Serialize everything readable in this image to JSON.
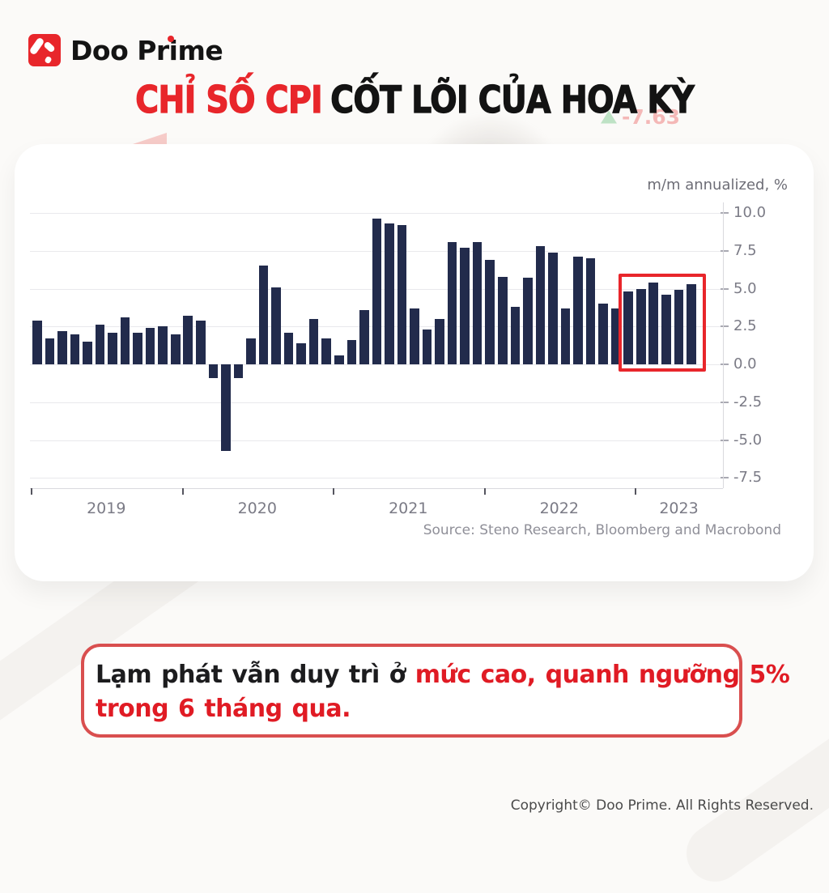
{
  "brand": {
    "name": "Doo Prime"
  },
  "title": {
    "red": "CHỈ SỐ CPI",
    "black": "CỐT LÕI CỦA HOA KỲ"
  },
  "background_remnant": {
    "ticker_value": "-7.63"
  },
  "chart_data": {
    "type": "bar",
    "title": "US Core CPI",
    "unit_label": "m/m annualized, %",
    "source": "Source: Steno Research, Bloomberg and Macrobond",
    "bar_color": "#222b4c",
    "grid": true,
    "y_axis_side": "right",
    "y_ticks": [
      10.0,
      7.5,
      5.0,
      2.5,
      0.0,
      -2.5,
      -5.0,
      -7.5
    ],
    "ylim": [
      -8.5,
      11.2
    ],
    "year_labels": [
      "2019",
      "2020",
      "2021",
      "2022",
      "2023"
    ],
    "x": [
      "Jan 2019",
      "Feb 2019",
      "Mar 2019",
      "Apr 2019",
      "May 2019",
      "Jun 2019",
      "Jul 2019",
      "Aug 2019",
      "Sep 2019",
      "Oct 2019",
      "Nov 2019",
      "Dec 2019",
      "Jan 2020",
      "Feb 2020",
      "Mar 2020",
      "Apr 2020",
      "May 2020",
      "Jun 2020",
      "Jul 2020",
      "Aug 2020",
      "Sep 2020",
      "Oct 2020",
      "Nov 2020",
      "Dec 2020",
      "Jan 2021",
      "Feb 2021",
      "Mar 2021",
      "Apr 2021",
      "May 2021",
      "Jun 2021",
      "Jul 2021",
      "Aug 2021",
      "Sep 2021",
      "Oct 2021",
      "Nov 2021",
      "Dec 2021",
      "Jan 2022",
      "Feb 2022",
      "Mar 2022",
      "Apr 2022",
      "May 2022",
      "Jun 2022",
      "Jul 2022",
      "Aug 2022",
      "Sep 2022",
      "Oct 2022",
      "Nov 2022",
      "Dec 2022",
      "Jan 2023",
      "Feb 2023",
      "Mar 2023",
      "Apr 2023",
      "May 2023"
    ],
    "values": [
      2.9,
      1.7,
      2.2,
      2.0,
      1.5,
      2.6,
      2.1,
      3.1,
      2.1,
      2.4,
      2.5,
      2.0,
      3.2,
      2.9,
      -0.9,
      -5.7,
      -0.9,
      1.7,
      6.5,
      5.1,
      2.1,
      1.4,
      3.0,
      1.7,
      0.6,
      1.6,
      3.6,
      9.6,
      9.3,
      9.2,
      3.7,
      2.3,
      3.0,
      8.1,
      7.7,
      8.1,
      6.9,
      5.8,
      3.8,
      5.7,
      7.8,
      7.4,
      3.7,
      7.1,
      7.0,
      4.0,
      3.7,
      4.8,
      5.0,
      5.4,
      4.6,
      4.9,
      5.3
    ],
    "highlight_box": {
      "from_index": 47,
      "to_index": 52,
      "label": "last 6 months",
      "color": "#e8262b"
    }
  },
  "caption": {
    "line1_black": "Lạm phát vẫn duy trì ở",
    "line1_red": "mức cao, quanh ngưỡng 5%",
    "line2_red": "trong 6 tháng qua."
  },
  "footer": {
    "copyright": "Copyright© Doo Prime. All Rights Reserved."
  }
}
